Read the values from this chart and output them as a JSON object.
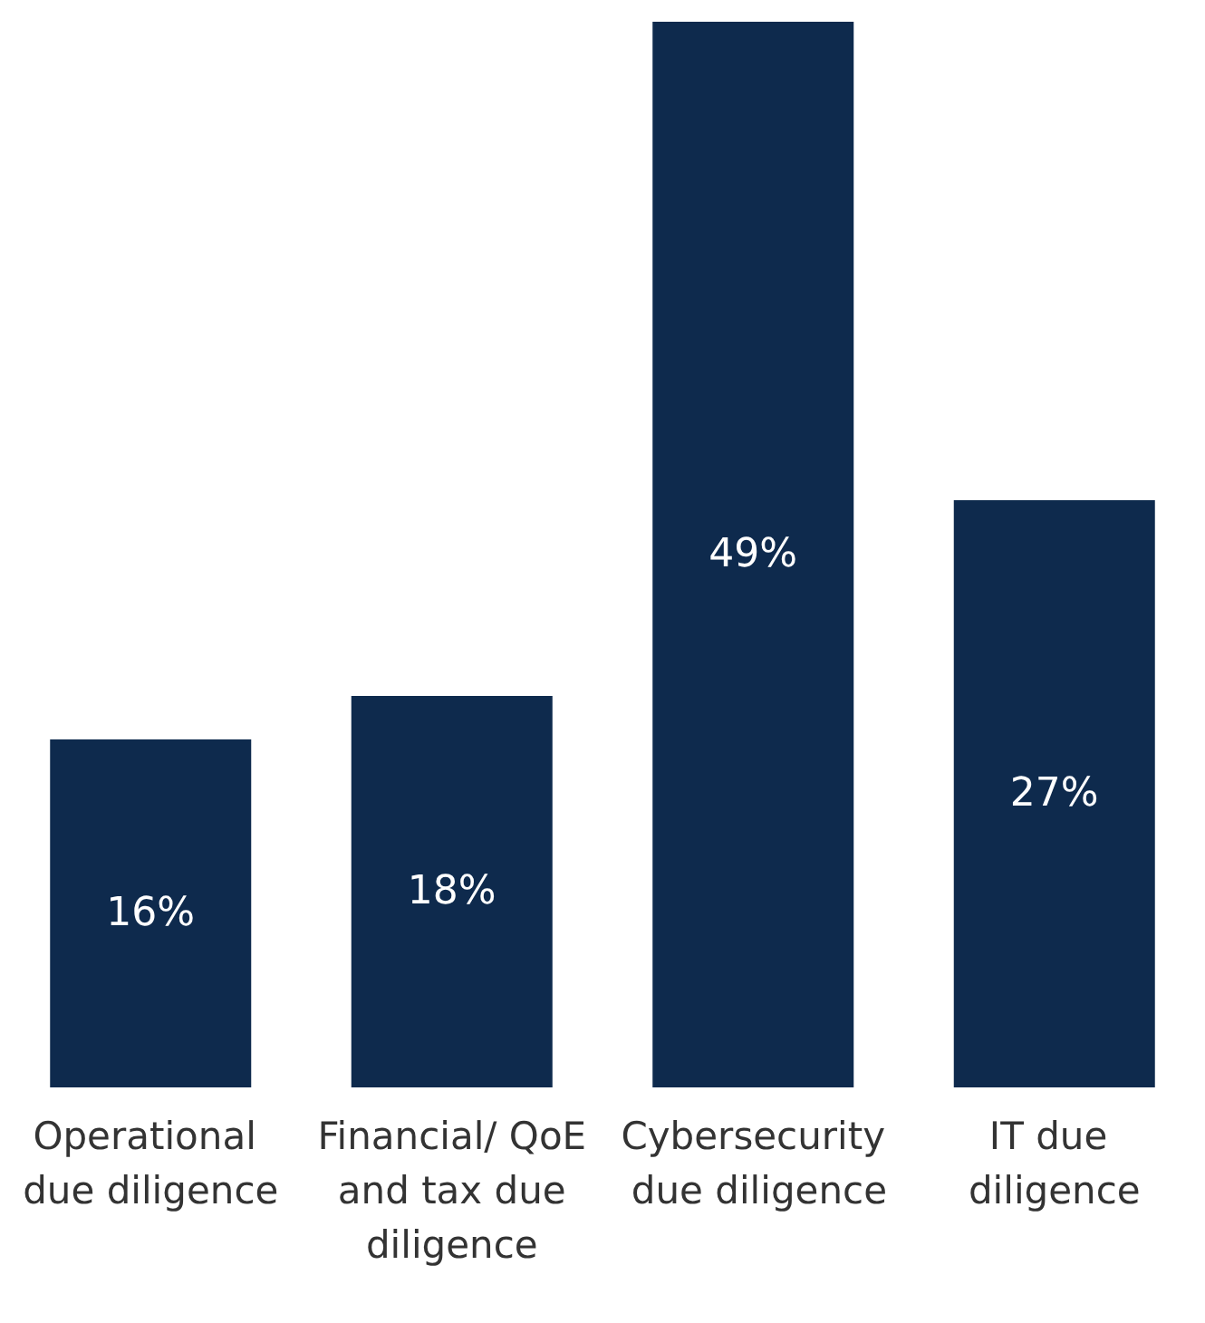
{
  "chart_data": {
    "type": "bar",
    "categories": [
      "Operational due diligence",
      "Financial/ QoE and tax due diligence",
      "Cybersecurity due diligence",
      "IT due diligence"
    ],
    "values": [
      16,
      18,
      49,
      27
    ],
    "value_labels": [
      "16%",
      "18%",
      "49%",
      "27%"
    ],
    "color": "#0e2a4d"
  }
}
